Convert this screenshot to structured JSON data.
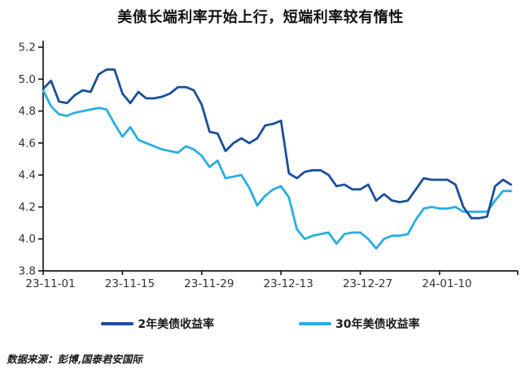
{
  "title": "美债长端利率开始上行，短端利率较有惰性",
  "source_note": "数据来源：彭博,国泰君安国际",
  "colors": {
    "series_2y": "#1b4f9c",
    "series_30y": "#2aade4",
    "axis": "#1a1a1a",
    "tick_text": "#333333"
  },
  "legend": [
    {
      "label": "2年美债收益率",
      "color": "#1b4f9c"
    },
    {
      "label": "30年美债收益率",
      "color": "#2aade4"
    }
  ],
  "chart_data": {
    "type": "line",
    "title": "美债长端利率开始上行，短端利率较有惰性",
    "xlabel": "",
    "ylabel": "",
    "ylim": [
      3.8,
      5.2
    ],
    "y_ticks": [
      5.2,
      5.0,
      4.8,
      4.6,
      4.4,
      4.2,
      4.0,
      3.8
    ],
    "x_tick_labels": [
      "23-11-01",
      "23-11-15",
      "23-11-29",
      "23-12-13",
      "23-12-27",
      "24-01-10"
    ],
    "x_tick_indices": [
      0,
      10,
      20,
      30,
      40,
      50
    ],
    "grid": false,
    "legend_position": "bottom",
    "series": [
      {
        "name": "2年美债收益率",
        "color": "#1b4f9c",
        "values": [
          4.94,
          4.99,
          4.86,
          4.85,
          4.9,
          4.93,
          4.92,
          5.03,
          5.06,
          5.06,
          4.91,
          4.85,
          4.92,
          4.88,
          4.88,
          4.89,
          4.91,
          4.95,
          4.95,
          4.93,
          4.84,
          4.67,
          4.66,
          4.55,
          4.6,
          4.63,
          4.6,
          4.63,
          4.71,
          4.72,
          4.74,
          4.41,
          4.38,
          4.42,
          4.43,
          4.43,
          4.4,
          4.33,
          4.34,
          4.31,
          4.31,
          4.34,
          4.24,
          4.28,
          4.24,
          4.23,
          4.24,
          4.31,
          4.38,
          4.37,
          4.37,
          4.37,
          4.34,
          4.2,
          4.13,
          4.13,
          4.14,
          4.33,
          4.37,
          4.34
        ]
      },
      {
        "name": "30年美债收益率",
        "color": "#2aade4",
        "values": [
          4.93,
          4.83,
          4.78,
          4.77,
          4.79,
          4.8,
          4.81,
          4.82,
          4.81,
          4.72,
          4.64,
          4.7,
          4.62,
          4.6,
          4.58,
          4.56,
          4.55,
          4.54,
          4.58,
          4.56,
          4.52,
          4.45,
          4.49,
          4.38,
          4.39,
          4.4,
          4.32,
          4.21,
          4.27,
          4.31,
          4.33,
          4.26,
          4.06,
          4.0,
          4.02,
          4.03,
          4.04,
          3.97,
          4.03,
          4.04,
          4.04,
          4.0,
          3.94,
          4.0,
          4.02,
          4.02,
          4.03,
          4.12,
          4.19,
          4.2,
          4.19,
          4.19,
          4.2,
          4.17,
          4.17,
          4.17,
          4.17,
          4.24,
          4.3,
          4.3
        ]
      }
    ]
  }
}
